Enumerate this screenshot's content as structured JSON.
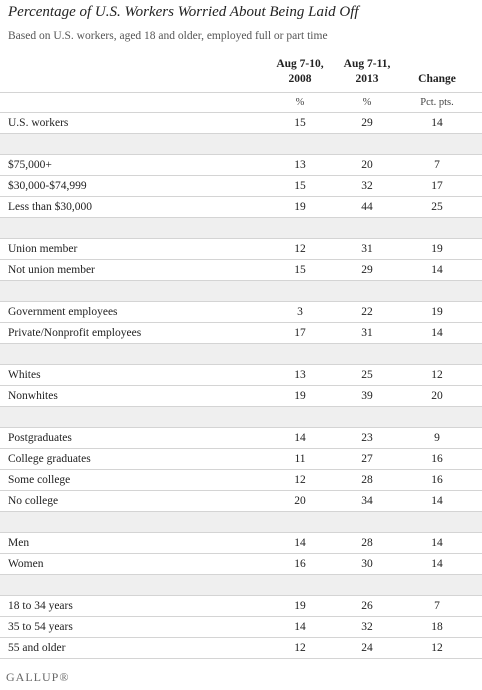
{
  "header": {
    "title": "Percentage of U.S. Workers Worried About Being Laid Off",
    "subtitle": "Based on U.S. workers, aged 18 and older, employed full or part time"
  },
  "table": {
    "columns": [
      {
        "line1": "Aug 7-10,",
        "line2": "2008",
        "unit": "%"
      },
      {
        "line1": "Aug 7-11,",
        "line2": "2013",
        "unit": "%"
      },
      {
        "line1": "Change",
        "unit": "Pct. pts."
      }
    ],
    "groups": [
      {
        "rows": [
          {
            "label": "U.S. workers",
            "values": [
              15,
              29,
              14
            ]
          }
        ]
      },
      {
        "rows": [
          {
            "label": "$75,000+",
            "values": [
              13,
              20,
              7
            ]
          },
          {
            "label": "$30,000-$74,999",
            "values": [
              15,
              32,
              17
            ]
          },
          {
            "label": "Less than $30,000",
            "values": [
              19,
              44,
              25
            ]
          }
        ]
      },
      {
        "rows": [
          {
            "label": "Union member",
            "values": [
              12,
              31,
              19
            ]
          },
          {
            "label": "Not union member",
            "values": [
              15,
              29,
              14
            ]
          }
        ]
      },
      {
        "rows": [
          {
            "label": "Government employees",
            "values": [
              3,
              22,
              19
            ]
          },
          {
            "label": "Private/Nonprofit employees",
            "values": [
              17,
              31,
              14
            ]
          }
        ]
      },
      {
        "rows": [
          {
            "label": "Whites",
            "values": [
              13,
              25,
              12
            ]
          },
          {
            "label": "Nonwhites",
            "values": [
              19,
              39,
              20
            ]
          }
        ]
      },
      {
        "rows": [
          {
            "label": "Postgraduates",
            "values": [
              14,
              23,
              9
            ]
          },
          {
            "label": "College graduates",
            "values": [
              11,
              27,
              16
            ]
          },
          {
            "label": "Some college",
            "values": [
              12,
              28,
              16
            ]
          },
          {
            "label": "No college",
            "values": [
              20,
              34,
              14
            ]
          }
        ]
      },
      {
        "rows": [
          {
            "label": "Men",
            "values": [
              14,
              28,
              14
            ]
          },
          {
            "label": "Women",
            "values": [
              16,
              30,
              14
            ]
          }
        ]
      },
      {
        "rows": [
          {
            "label": "18 to 34 years",
            "values": [
              19,
              26,
              7
            ]
          },
          {
            "label": "35 to 54 years",
            "values": [
              14,
              32,
              18
            ]
          },
          {
            "label": "55 and older",
            "values": [
              12,
              24,
              12
            ]
          }
        ]
      }
    ]
  },
  "footer": {
    "brand": "GALLUP®"
  }
}
